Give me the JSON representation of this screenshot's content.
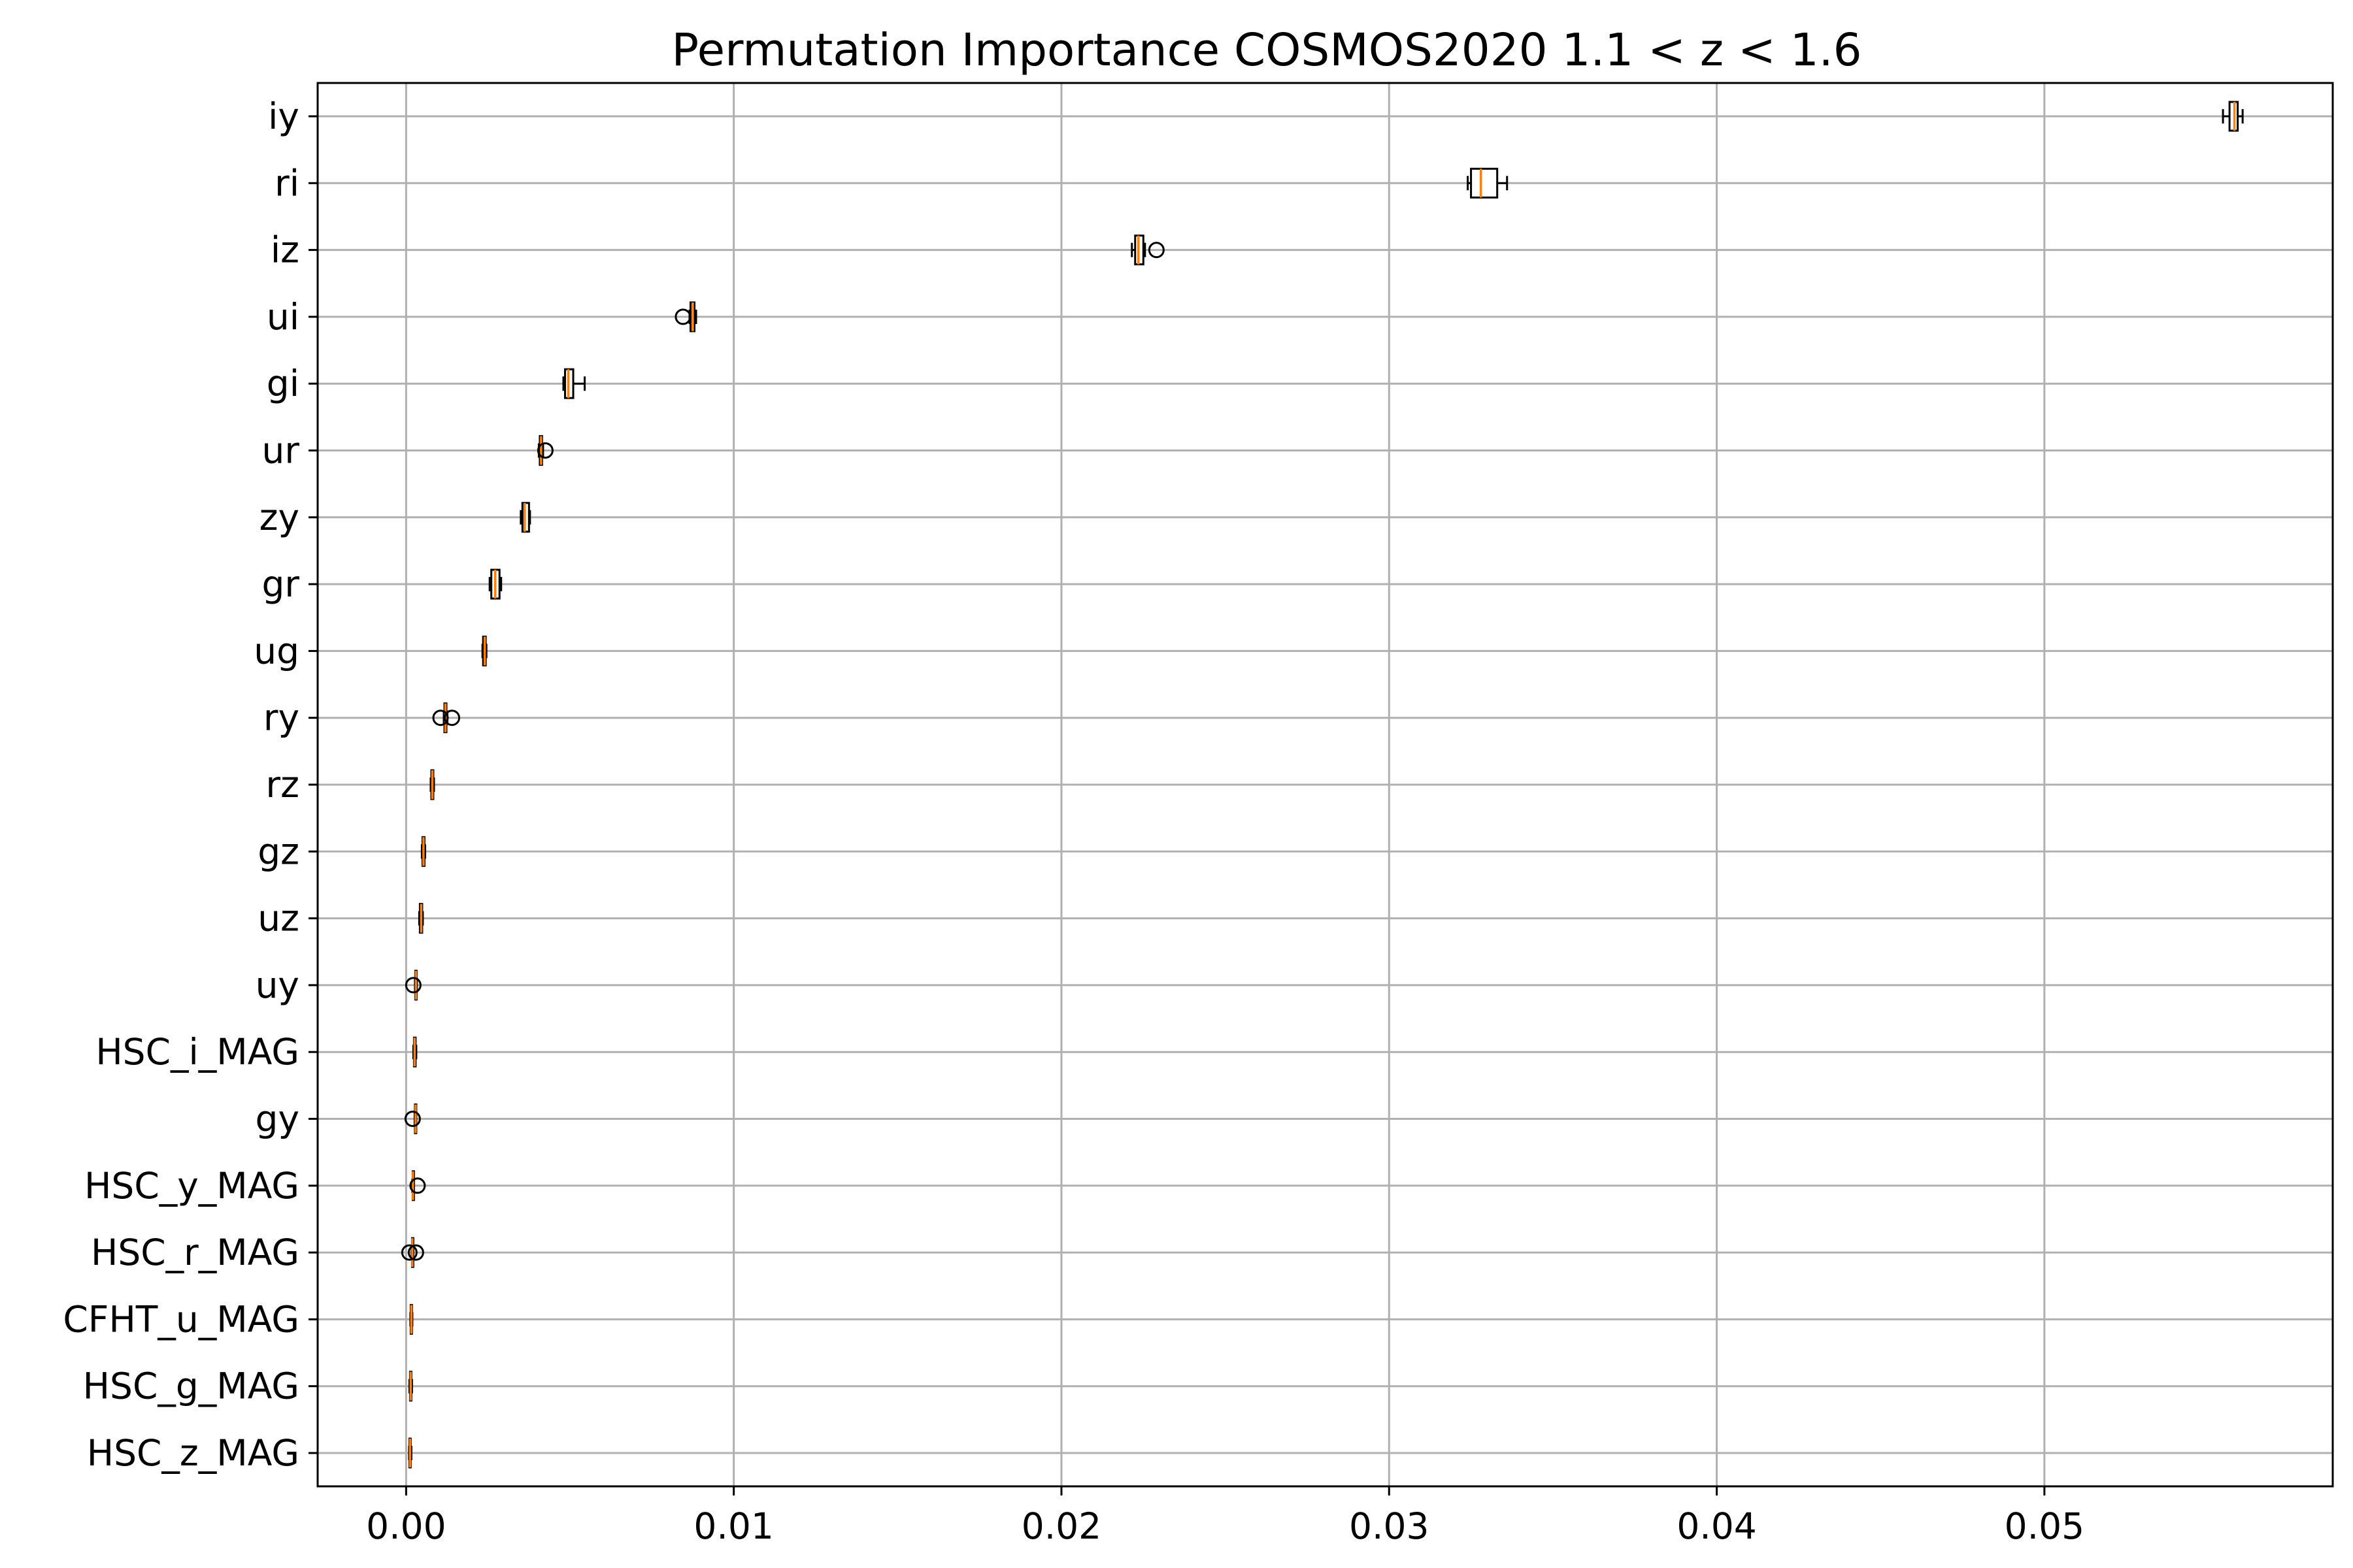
{
  "chart_data": {
    "type": "box",
    "title": "Permutation Importance COSMOS2020 1.1 < z < 1.6",
    "orientation": "horizontal",
    "xlabel": "",
    "ylabel": "",
    "xlim": [
      -0.0027,
      0.0588
    ],
    "xticks": [
      0.0,
      0.01,
      0.02,
      0.03,
      0.04,
      0.05
    ],
    "xtick_labels": [
      "0.00",
      "0.01",
      "0.02",
      "0.03",
      "0.04",
      "0.05"
    ],
    "grid": true,
    "series": [
      {
        "label": "iy",
        "whislo": 0.05545,
        "q1": 0.05565,
        "med": 0.0558,
        "q3": 0.0559,
        "whishi": 0.05605,
        "fliers": []
      },
      {
        "label": "ri",
        "whislo": 0.0324,
        "q1": 0.0325,
        "med": 0.0328,
        "q3": 0.0333,
        "whishi": 0.0336,
        "fliers": []
      },
      {
        "label": "iz",
        "whislo": 0.02215,
        "q1": 0.02225,
        "med": 0.02235,
        "q3": 0.0225,
        "whishi": 0.02255,
        "fliers": [
          0.0229
        ]
      },
      {
        "label": "ui",
        "whislo": 0.00865,
        "q1": 0.00868,
        "med": 0.00875,
        "q3": 0.0088,
        "whishi": 0.00885,
        "fliers": [
          0.00845
        ]
      },
      {
        "label": "gi",
        "whislo": 0.0048,
        "q1": 0.00485,
        "med": 0.00495,
        "q3": 0.0051,
        "whishi": 0.00545,
        "fliers": []
      },
      {
        "label": "ur",
        "whislo": 0.00405,
        "q1": 0.00408,
        "med": 0.00412,
        "q3": 0.00415,
        "whishi": 0.00418,
        "fliers": [
          0.00425
        ]
      },
      {
        "label": "zy",
        "whislo": 0.0035,
        "q1": 0.00355,
        "med": 0.00362,
        "q3": 0.00375,
        "whishi": 0.00378,
        "fliers": []
      },
      {
        "label": "gr",
        "whislo": 0.00255,
        "q1": 0.0026,
        "med": 0.00272,
        "q3": 0.00285,
        "whishi": 0.0029,
        "fliers": []
      },
      {
        "label": "ug",
        "whislo": 0.00233,
        "q1": 0.00235,
        "med": 0.0024,
        "q3": 0.00243,
        "whishi": 0.00245,
        "fliers": []
      },
      {
        "label": "ry",
        "whislo": 0.00115,
        "q1": 0.00117,
        "med": 0.0012,
        "q3": 0.00123,
        "whishi": 0.00126,
        "fliers": [
          0.00105,
          0.0014
        ]
      },
      {
        "label": "rz",
        "whislo": 0.00075,
        "q1": 0.00077,
        "med": 0.0008,
        "q3": 0.00083,
        "whishi": 0.00085,
        "fliers": []
      },
      {
        "label": "gz",
        "whislo": 0.00048,
        "q1": 0.0005,
        "med": 0.00053,
        "q3": 0.00056,
        "whishi": 0.00058,
        "fliers": []
      },
      {
        "label": "uz",
        "whislo": 0.0004,
        "q1": 0.00042,
        "med": 0.00046,
        "q3": 0.00049,
        "whishi": 0.00051,
        "fliers": []
      },
      {
        "label": "uy",
        "whislo": 0.00027,
        "q1": 0.00028,
        "med": 0.0003,
        "q3": 0.00032,
        "whishi": 0.00033,
        "fliers": [
          0.00022
        ]
      },
      {
        "label": "HSC_i_MAG",
        "whislo": 0.00022,
        "q1": 0.00024,
        "med": 0.00026,
        "q3": 0.00029,
        "whishi": 0.00031,
        "fliers": []
      },
      {
        "label": "gy",
        "whislo": 0.00026,
        "q1": 0.00027,
        "med": 0.00029,
        "q3": 0.0003,
        "whishi": 0.00031,
        "fliers": [
          0.0002
        ]
      },
      {
        "label": "HSC_y_MAG",
        "whislo": 0.00019,
        "q1": 0.0002,
        "med": 0.00021,
        "q3": 0.00022,
        "whishi": 0.00024,
        "fliers": [
          0.00035
        ]
      },
      {
        "label": "HSC_r_MAG",
        "whislo": 0.00017,
        "q1": 0.00018,
        "med": 0.00019,
        "q3": 0.0002,
        "whishi": 0.00022,
        "fliers": [
          0.0001,
          0.0003
        ]
      },
      {
        "label": "CFHT_u_MAG",
        "whislo": 0.00013,
        "q1": 0.00014,
        "med": 0.00016,
        "q3": 0.00018,
        "whishi": 0.00019,
        "fliers": []
      },
      {
        "label": "HSC_g_MAG",
        "whislo": 0.0001,
        "q1": 0.00012,
        "med": 0.00014,
        "q3": 0.00016,
        "whishi": 0.00018,
        "fliers": []
      },
      {
        "label": "HSC_z_MAG",
        "whislo": 9e-05,
        "q1": 0.0001,
        "med": 0.00012,
        "q3": 0.00014,
        "whishi": 0.00016,
        "fliers": []
      }
    ],
    "colors": {
      "median": "#ff7f0e",
      "box_edge": "#000000",
      "grid": "#b0b0b0"
    }
  }
}
